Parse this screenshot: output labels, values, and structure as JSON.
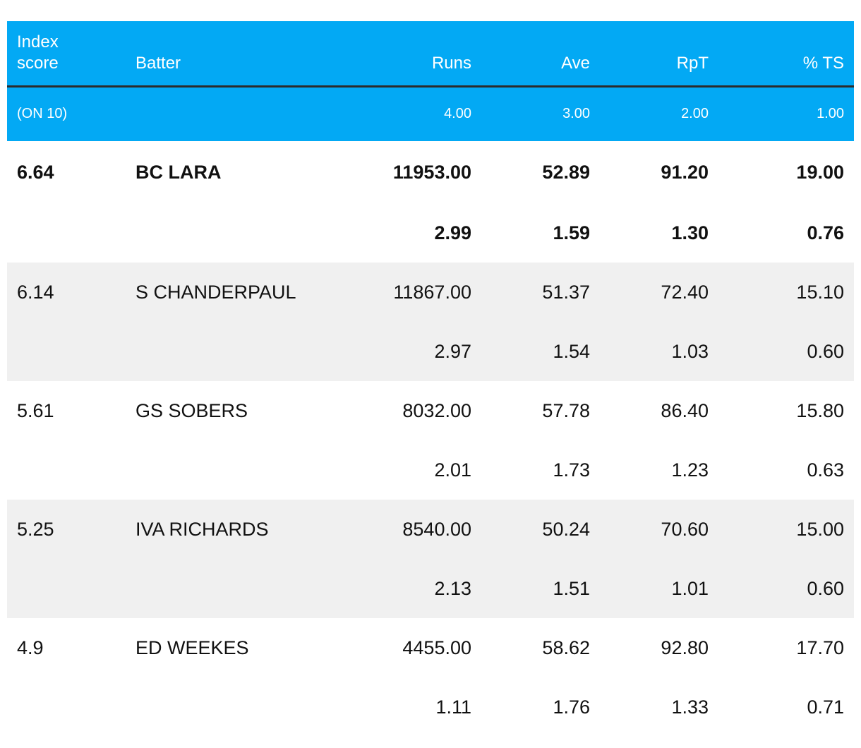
{
  "header": {
    "index_label_line1": "Index",
    "index_label_line2": "score",
    "batter": "Batter",
    "runs": "Runs",
    "ave": "Ave",
    "rpt": "RpT",
    "ts": "% TS"
  },
  "weights": {
    "label": "(ON 10)",
    "runs": "4.00",
    "ave": "3.00",
    "rpt": "2.00",
    "ts": "1.00"
  },
  "rows": [
    {
      "index": "6.64",
      "batter": "BC LARA",
      "runs": "11953.00",
      "ave": "52.89",
      "rpt": "91.20",
      "ts": "19.00",
      "score_runs": "2.99",
      "score_ave": "1.59",
      "score_rpt": "1.30",
      "score_ts": "0.76"
    },
    {
      "index": "6.14",
      "batter": "S CHANDERPAUL",
      "runs": "11867.00",
      "ave": "51.37",
      "rpt": "72.40",
      "ts": "15.10",
      "score_runs": "2.97",
      "score_ave": "1.54",
      "score_rpt": "1.03",
      "score_ts": "0.60"
    },
    {
      "index": "5.61",
      "batter": "GS SOBERS",
      "runs": "8032.00",
      "ave": "57.78",
      "rpt": "86.40",
      "ts": "15.80",
      "score_runs": "2.01",
      "score_ave": "1.73",
      "score_rpt": "1.23",
      "score_ts": "0.63"
    },
    {
      "index": "5.25",
      "batter": "IVA RICHARDS",
      "runs": "8540.00",
      "ave": "50.24",
      "rpt": "70.60",
      "ts": "15.00",
      "score_runs": "2.13",
      "score_ave": "1.51",
      "score_rpt": "1.01",
      "score_ts": "0.60"
    },
    {
      "index": "4.9",
      "batter": "ED WEEKES",
      "runs": "4455.00",
      "ave": "58.62",
      "rpt": "92.80",
      "ts": "17.70",
      "score_runs": "1.11",
      "score_ave": "1.76",
      "score_rpt": "1.33",
      "score_ts": "0.71"
    }
  ],
  "colors": {
    "header_bg": "#03a9f4",
    "header_text": "#ffffff",
    "header_rule": "#2b2b2b",
    "shaded_row": "#f0f0f0",
    "body_text": "#111111"
  }
}
